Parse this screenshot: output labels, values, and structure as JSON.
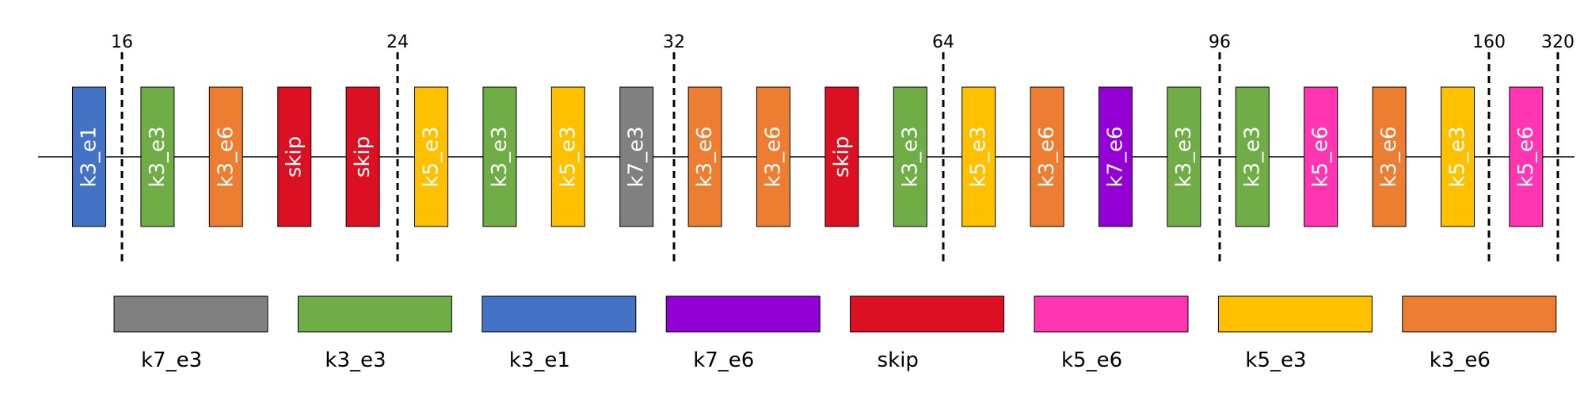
{
  "colors": {
    "k7_e3": "#808080",
    "k3_e3": "#70AD47",
    "k3_e1": "#4472C4",
    "k7_e6": "#9400D3",
    "skip": "#DC1023",
    "k5_e6": "#FF35B1",
    "k5_e3": "#FFC000",
    "k3_e6": "#ED7D31"
  },
  "stage_labels": [
    "16",
    "24",
    "32",
    "64",
    "96",
    "160",
    "320"
  ],
  "blocks": [
    "k3_e1",
    "k3_e3",
    "k3_e6",
    "skip",
    "skip",
    "k5_e3",
    "k3_e3",
    "k5_e3",
    "k7_e3",
    "k3_e6",
    "k3_e6",
    "skip",
    "k3_e3",
    "k5_e3",
    "k3_e6",
    "k7_e6",
    "k3_e3",
    "k3_e3",
    "k5_e6",
    "k3_e6",
    "k5_e3",
    "k5_e6"
  ],
  "legend": [
    "k7_e3",
    "k3_e3",
    "k3_e1",
    "k7_e6",
    "skip",
    "k5_e6",
    "k5_e3",
    "k3_e6"
  ]
}
